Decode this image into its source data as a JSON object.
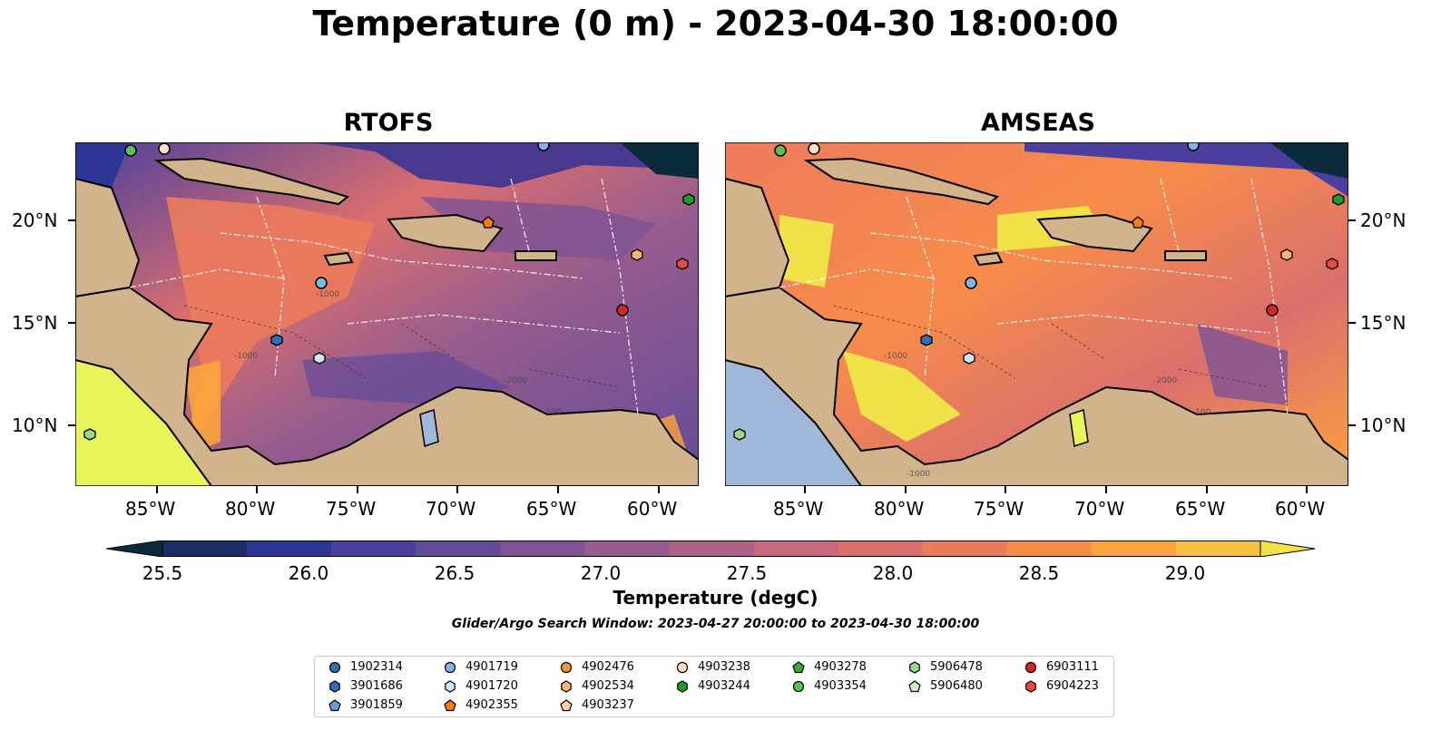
{
  "figure": {
    "title": "Temperature (0 m) - 2023-04-30 18:00:00",
    "search_window": "Glider/Argo Search Window: 2023-04-27 20:00:00 to 2023-04-30 18:00:00"
  },
  "panels": [
    {
      "title": "RTOFS"
    },
    {
      "title": "AMSEAS"
    }
  ],
  "map": {
    "lon_ticks": [
      "85°W",
      "80°W",
      "75°W",
      "70°W",
      "65°W",
      "60°W"
    ],
    "lat_ticks": [
      "20°N",
      "15°N",
      "10°N"
    ],
    "contour_labels": [
      "-1000",
      "-1000",
      "-1000",
      "-100",
      "-2000"
    ],
    "colors": {
      "land": "#d2b48c",
      "lake_water": "#9fb7d9",
      "warm_max": "#e8f55a",
      "cold_min": "#0a2233"
    }
  },
  "colorbar": {
    "label": "Temperature (degC)",
    "ticks": [
      "25.5",
      "26.0",
      "26.5",
      "27.0",
      "27.5",
      "28.0",
      "28.5",
      "29.0"
    ],
    "colors": [
      "#0b2a3b",
      "#1b2f66",
      "#2d3694",
      "#4a3e9e",
      "#634a98",
      "#7d5394",
      "#965c8e",
      "#af6286",
      "#c7687c",
      "#db6f6e",
      "#ec7b5c",
      "#f78c4a",
      "#fba43d",
      "#f7c13f",
      "#f1e24a"
    ]
  },
  "legend": {
    "items": [
      {
        "label": "1902314",
        "color": "#2f6fb7",
        "marker": "circle"
      },
      {
        "label": "3901686",
        "color": "#2f6fb7",
        "marker": "hexagon"
      },
      {
        "label": "3901859",
        "color": "#6a9fd6",
        "marker": "pentagon"
      },
      {
        "label": "4901719",
        "color": "#7fb5e6",
        "marker": "circle"
      },
      {
        "label": "4901720",
        "color": "#cfe6f7",
        "marker": "hexagon"
      },
      {
        "label": "4902355",
        "color": "#f07f18",
        "marker": "pentagon"
      },
      {
        "label": "4902476",
        "color": "#f5913a",
        "marker": "circle"
      },
      {
        "label": "4902534",
        "color": "#f8b27a",
        "marker": "hexagon"
      },
      {
        "label": "4903237",
        "color": "#fbd1a4",
        "marker": "pentagon"
      },
      {
        "label": "4903238",
        "color": "#fde0c5",
        "marker": "circle"
      },
      {
        "label": "4903244",
        "color": "#1f9b2c",
        "marker": "hexagon"
      },
      {
        "label": "4903278",
        "color": "#3aa93b",
        "marker": "pentagon"
      },
      {
        "label": "4903354",
        "color": "#5cc05a",
        "marker": "circle"
      },
      {
        "label": "5906478",
        "color": "#9ad88b",
        "marker": "hexagon"
      },
      {
        "label": "5906480",
        "color": "#cdf0c2",
        "marker": "pentagon"
      },
      {
        "label": "6903111",
        "color": "#d62728",
        "marker": "circle"
      },
      {
        "label": "6904223",
        "color": "#ea4a3c",
        "marker": "hexagon"
      }
    ]
  }
}
